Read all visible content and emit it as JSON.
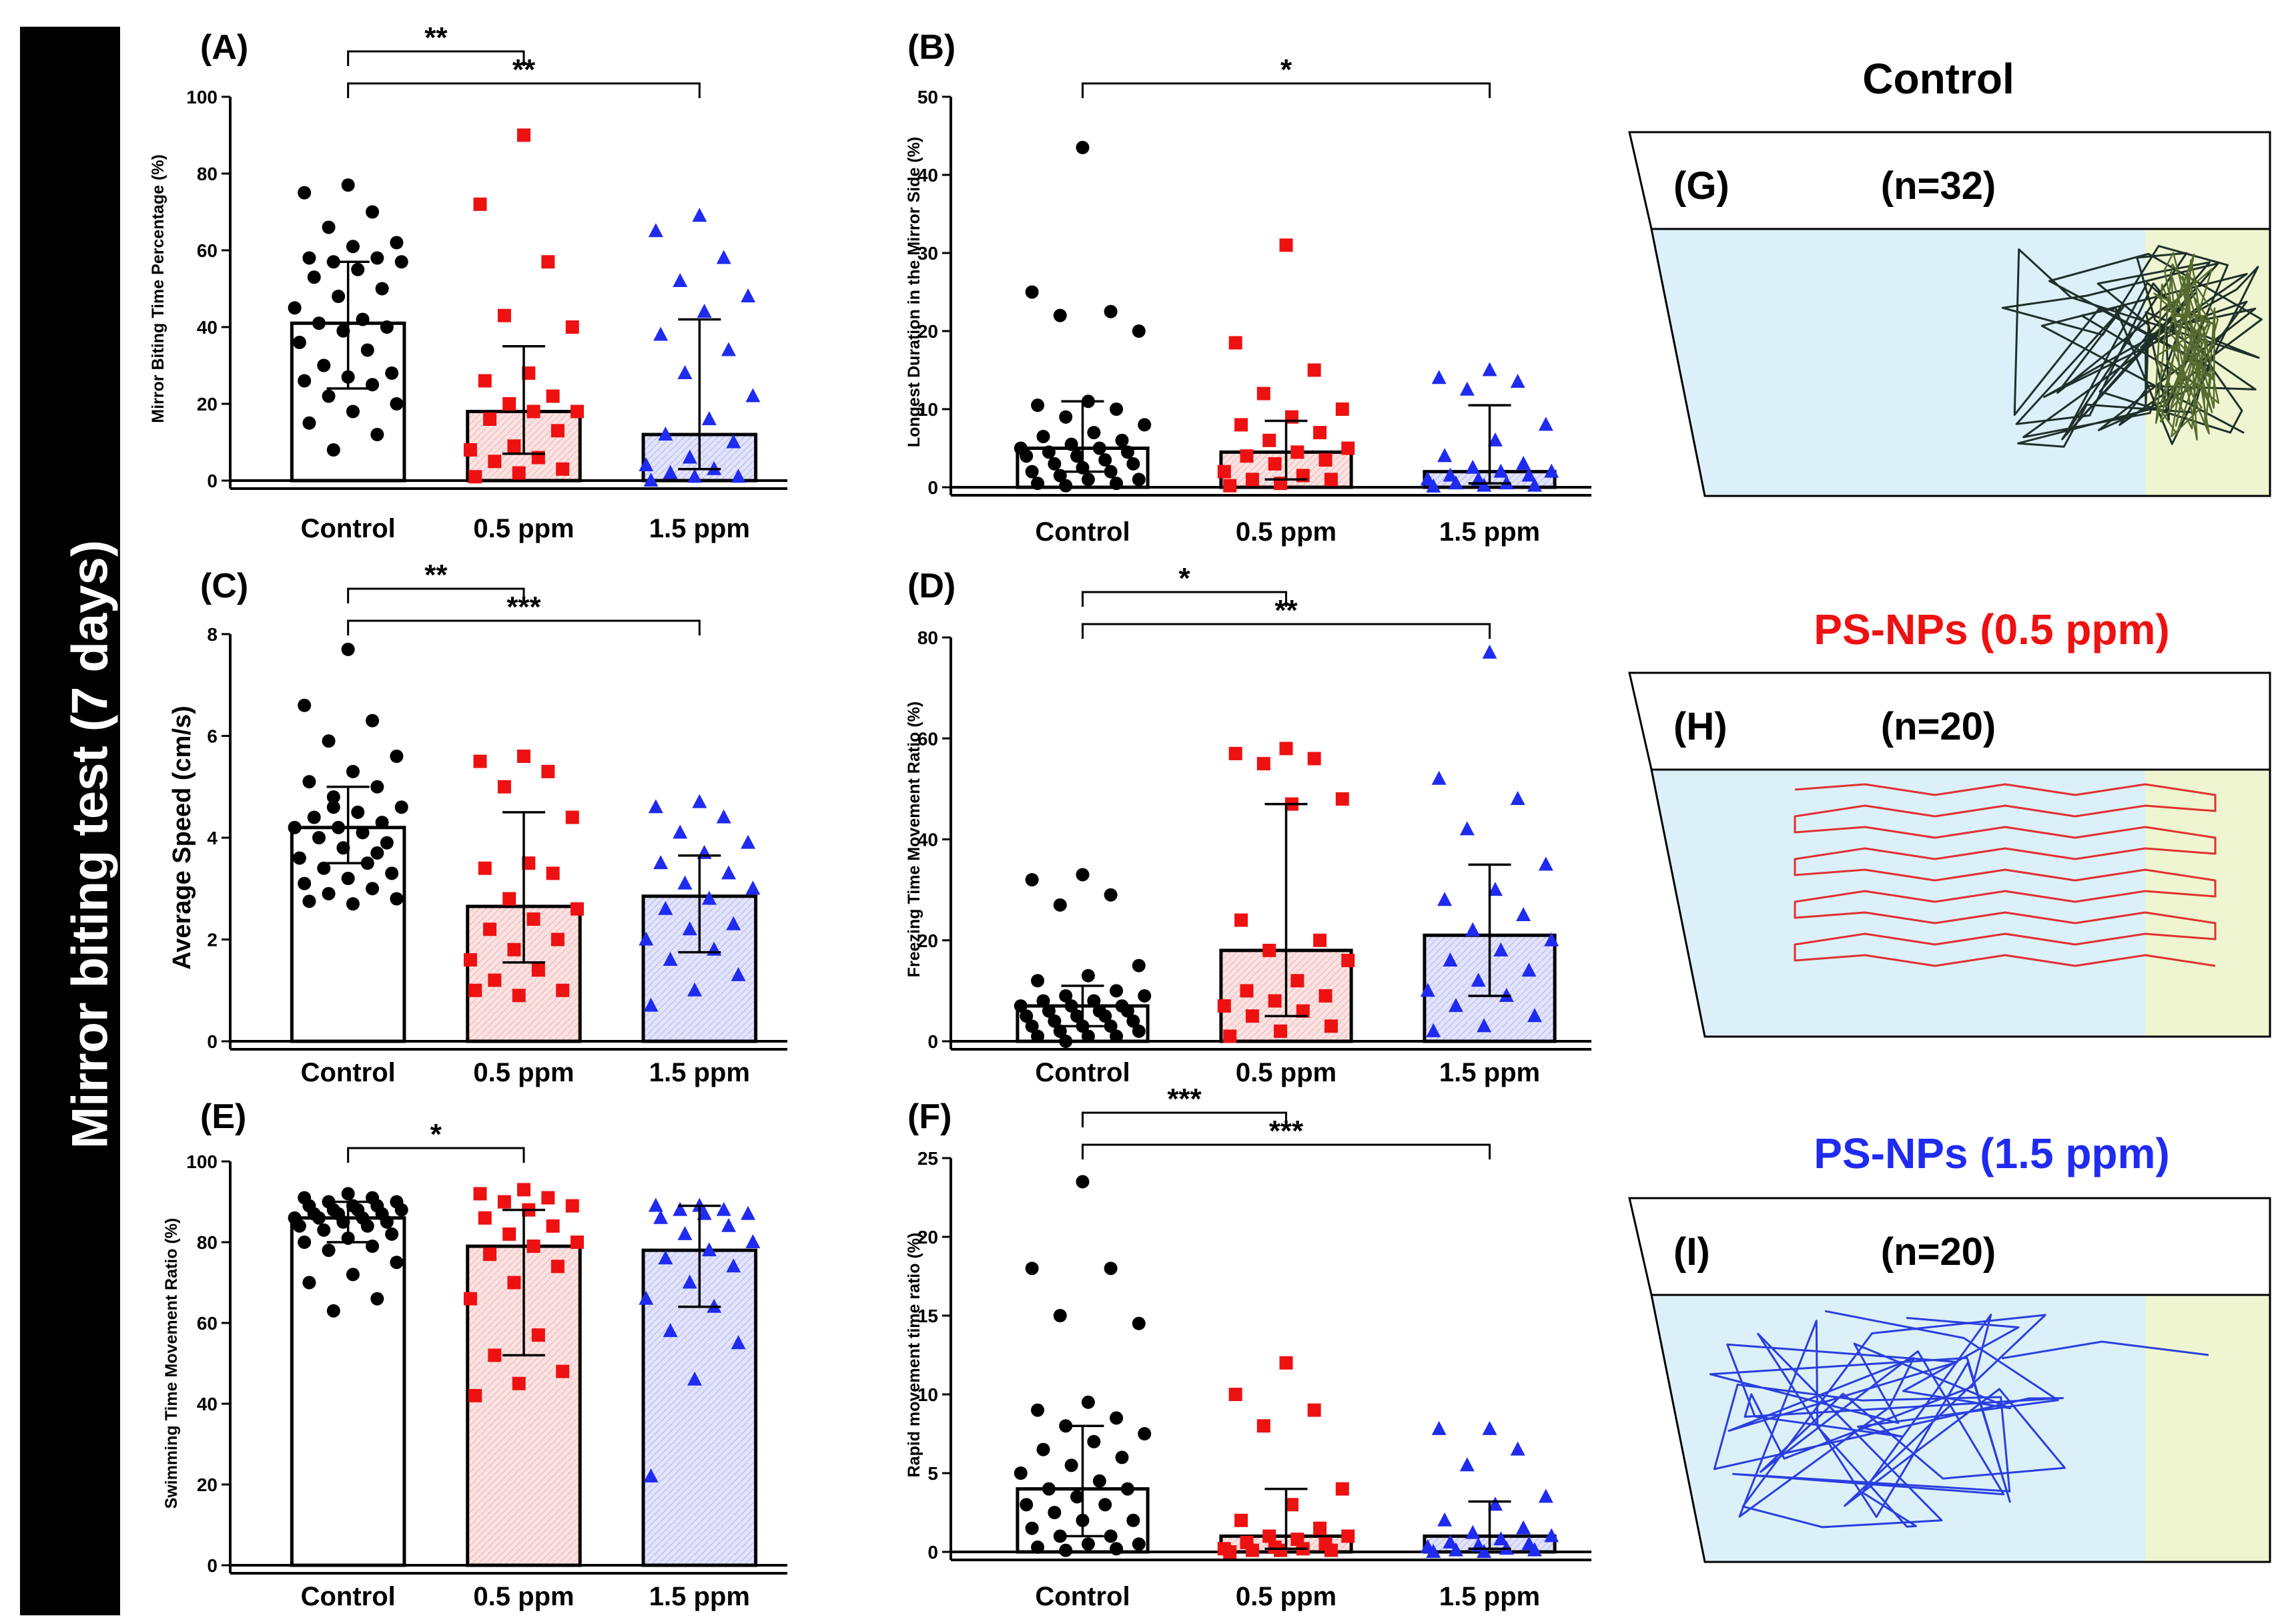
{
  "side_title": "Mirror biting test (7 days)",
  "colors": {
    "control": "#000000",
    "low": "#ee1111",
    "high": "#1f2bf0",
    "low_fill": "#fbe3e3",
    "high_fill": "#e3e4fb",
    "water": "#dcf0f9",
    "mirror_zone": "#eef5d0",
    "track_control": "#1f2f2a",
    "track_control_mirror": "#556b2f",
    "track_low": "#e03030",
    "track_high": "#2a3ee0"
  },
  "chart_data": [
    {
      "panel": "(A)",
      "type": "bar",
      "ylabel": "Mirror Biting Time Percentage (%)",
      "ylim": [
        0,
        100
      ],
      "yticks": [
        0,
        20,
        40,
        60,
        80,
        100
      ],
      "categories": [
        "Control",
        "0.5 ppm",
        "1.5 ppm"
      ],
      "bars": [
        {
          "median": 41,
          "q1": 24,
          "q3": 57
        },
        {
          "median": 18,
          "q1": 7,
          "q3": 35
        },
        {
          "median": 12,
          "q1": 3,
          "q3": 42
        }
      ],
      "points": [
        [
          77,
          75,
          70,
          66,
          62,
          61,
          58,
          58,
          57,
          57,
          55,
          53,
          50,
          48,
          45,
          42,
          41,
          40,
          39,
          36,
          34,
          30,
          28,
          27,
          26,
          25,
          22,
          20,
          18,
          15,
          12,
          8
        ],
        [
          90,
          72,
          57,
          43,
          40,
          28,
          26,
          22,
          20,
          18,
          18,
          16,
          13,
          9,
          8,
          6,
          5,
          3,
          2,
          1
        ],
        [
          69,
          65,
          58,
          52,
          48,
          44,
          38,
          34,
          28,
          22,
          16,
          12,
          10,
          6,
          4,
          3,
          2,
          1,
          1,
          0
        ]
      ],
      "significance": [
        {
          "from": 0,
          "to": 1,
          "label": "**"
        },
        {
          "from": 0,
          "to": 2,
          "label": "**"
        }
      ]
    },
    {
      "panel": "(B)",
      "type": "bar",
      "ylabel": "Longest  Duration in the Mirror  Side (%)",
      "ylim": [
        0,
        50
      ],
      "yticks": [
        0,
        10,
        20,
        30,
        40,
        50
      ],
      "categories": [
        "Control",
        "0.5 ppm",
        "1.5 ppm"
      ],
      "bars": [
        {
          "median": 5,
          "q1": 2,
          "q3": 11
        },
        {
          "median": 4.5,
          "q1": 1,
          "q3": 8.5
        },
        {
          "median": 2,
          "q1": 0.5,
          "q3": 10.5
        }
      ],
      "points": [
        [
          43.5,
          25,
          22.5,
          22,
          20,
          11,
          10.5,
          10,
          9,
          8,
          7,
          6.5,
          6,
          5.5,
          5,
          5,
          4.5,
          4.5,
          4,
          4,
          3.5,
          3,
          3,
          2.5,
          2,
          2,
          1.5,
          1,
          1,
          0.5,
          0.5,
          0.2
        ],
        [
          31,
          18.5,
          15,
          12,
          10,
          9,
          8,
          7,
          6,
          5,
          4.5,
          4,
          3.5,
          3,
          2,
          1.5,
          1,
          1,
          0.5,
          0.2
        ],
        [
          15,
          14,
          13.5,
          12.5,
          8,
          6,
          4,
          3,
          2.5,
          2,
          2,
          1.5,
          1.5,
          1,
          1,
          0.5,
          0.5,
          0.2,
          0.2,
          0.1
        ]
      ],
      "significance": [
        {
          "from": 0,
          "to": 2,
          "label": "*"
        }
      ]
    },
    {
      "panel": "(C)",
      "type": "bar",
      "ylabel": "Average Speed (cm/s)",
      "ylim": [
        0,
        8
      ],
      "yticks": [
        0,
        2,
        4,
        6,
        8
      ],
      "categories": [
        "Control",
        "0.5 ppm",
        "1.5 ppm"
      ],
      "bars": [
        {
          "median": 4.2,
          "q1": 3.5,
          "q3": 5
        },
        {
          "median": 2.65,
          "q1": 1.55,
          "q3": 4.5
        },
        {
          "median": 2.85,
          "q1": 1.75,
          "q3": 3.65
        }
      ],
      "points": [
        [
          7.7,
          6.6,
          6.3,
          5.9,
          5.6,
          5.3,
          5.1,
          5.0,
          4.8,
          4.6,
          4.5,
          4.4,
          4.3,
          4.2,
          4.2,
          4.1,
          4.0,
          3.9,
          3.8,
          3.6,
          3.5,
          3.4,
          3.3,
          3.2,
          3.1,
          3.0,
          2.9,
          2.8,
          2.7,
          2.75,
          3.7,
          4.6
        ],
        [
          5.6,
          5.5,
          5.3,
          5.0,
          4.4,
          3.5,
          3.4,
          3.3,
          2.8,
          2.6,
          2.4,
          2.2,
          2.0,
          1.8,
          1.6,
          1.4,
          1.2,
          1.0,
          0.9,
          1.0
        ],
        [
          4.7,
          4.6,
          4.4,
          4.1,
          3.9,
          3.7,
          3.5,
          3.3,
          3.1,
          3.0,
          2.8,
          2.6,
          2.3,
          2.2,
          2.0,
          1.8,
          1.6,
          1.3,
          1.0,
          0.7
        ]
      ],
      "significance": [
        {
          "from": 0,
          "to": 1,
          "label": "**"
        },
        {
          "from": 0,
          "to": 2,
          "label": "***"
        }
      ]
    },
    {
      "panel": "(D)",
      "type": "bar",
      "ylabel": "Freezing Time Movement Ratio (%)",
      "ylim": [
        0,
        80
      ],
      "yticks": [
        0,
        20,
        40,
        60,
        80
      ],
      "categories": [
        "Control",
        "0.5 ppm",
        "1.5 ppm"
      ],
      "bars": [
        {
          "median": 7,
          "q1": 3,
          "q3": 11
        },
        {
          "median": 18,
          "q1": 5,
          "q3": 47
        },
        {
          "median": 21,
          "q1": 9,
          "q3": 35
        }
      ],
      "points": [
        [
          33,
          32,
          29,
          27,
          15,
          13,
          12,
          10,
          9,
          9,
          8,
          8,
          7,
          7,
          7,
          6,
          6,
          6,
          5,
          5,
          5,
          4,
          4,
          3,
          3,
          3,
          2,
          2,
          1,
          1,
          1,
          0
        ],
        [
          58,
          57,
          56,
          55,
          48,
          47,
          24,
          20,
          18,
          16,
          12,
          10,
          9,
          8,
          7,
          6,
          5,
          3,
          2,
          1
        ],
        [
          77,
          52,
          48,
          42,
          35,
          30,
          28,
          25,
          22,
          20,
          18,
          16,
          14,
          12,
          10,
          9,
          7,
          5,
          3,
          2
        ]
      ],
      "significance": [
        {
          "from": 0,
          "to": 1,
          "label": "*"
        },
        {
          "from": 0,
          "to": 2,
          "label": "**"
        }
      ]
    },
    {
      "panel": "(E)",
      "type": "bar",
      "ylabel": "Swimming Time Movement  Ratio (%)",
      "ylim": [
        0,
        100
      ],
      "yticks": [
        0,
        20,
        40,
        60,
        80,
        100
      ],
      "categories": [
        "Control",
        "0.5 ppm",
        "1.5 ppm"
      ],
      "bars": [
        {
          "median": 86,
          "q1": 80,
          "q3": 90
        },
        {
          "median": 79,
          "q1": 52,
          "q3": 88
        },
        {
          "median": 78,
          "q1": 64,
          "q3": 89
        }
      ],
      "points": [
        [
          92,
          91,
          91,
          90,
          90,
          89,
          89,
          89,
          88,
          88,
          88,
          87,
          87,
          87,
          86,
          86,
          86,
          85,
          85,
          84,
          84,
          83,
          82,
          81,
          80,
          79,
          78,
          75,
          72,
          70,
          66,
          63
        ],
        [
          93,
          92,
          91,
          90,
          89,
          88,
          86,
          84,
          82,
          80,
          79,
          77,
          74,
          70,
          66,
          57,
          52,
          48,
          45,
          42
        ],
        [
          89,
          89,
          88,
          88,
          87,
          87,
          86,
          84,
          82,
          80,
          78,
          76,
          74,
          70,
          66,
          64,
          58,
          55,
          46,
          22
        ]
      ],
      "significance": [
        {
          "from": 0,
          "to": 1,
          "label": "*"
        }
      ]
    },
    {
      "panel": "(F)",
      "type": "bar",
      "ylabel": "Rapid movement time ratio (%)",
      "ylim": [
        0,
        25
      ],
      "yticks": [
        0,
        5,
        10,
        15,
        20,
        25
      ],
      "categories": [
        "Control",
        "0.5 ppm",
        "1.5 ppm"
      ],
      "bars": [
        {
          "median": 4,
          "q1": 1,
          "q3": 8
        },
        {
          "median": 1,
          "q1": 0.2,
          "q3": 4
        },
        {
          "median": 1,
          "q1": 0.2,
          "q3": 3.2
        }
      ],
      "points": [
        [
          23.5,
          18,
          18,
          15,
          14.5,
          9.5,
          9,
          8.5,
          8,
          7.5,
          7,
          6.5,
          6,
          5.5,
          5,
          4.5,
          4,
          4,
          3.5,
          3,
          3,
          2.5,
          2,
          2,
          1.5,
          1,
          1,
          0.5,
          0.5,
          0.3,
          0.2,
          0.1
        ],
        [
          12,
          10,
          9,
          8,
          4,
          3,
          2,
          1.5,
          1,
          1,
          0.8,
          0.6,
          0.5,
          0.3,
          0.2,
          0.2,
          0.1,
          0.1,
          0.1,
          0
        ],
        [
          7.8,
          7.8,
          6.5,
          5.5,
          3.5,
          3,
          2,
          1.5,
          1.2,
          1,
          0.8,
          0.6,
          0.5,
          0.4,
          0.3,
          0.2,
          0.1,
          0.1,
          0,
          0
        ]
      ],
      "significance": [
        {
          "from": 0,
          "to": 1,
          "label": "***"
        },
        {
          "from": 0,
          "to": 2,
          "label": "***"
        }
      ]
    }
  ],
  "tracks": [
    {
      "panel": "(G)",
      "title": "Control",
      "n_label": "(n=32)",
      "title_color": "#000000"
    },
    {
      "panel": "(H)",
      "title": "PS-NPs (0.5 ppm)",
      "n_label": "(n=20)",
      "title_color": "#ee1111"
    },
    {
      "panel": "(I)",
      "title": "PS-NPs (1.5 ppm)",
      "n_label": "(n=20)",
      "title_color": "#1f2bf0"
    }
  ]
}
